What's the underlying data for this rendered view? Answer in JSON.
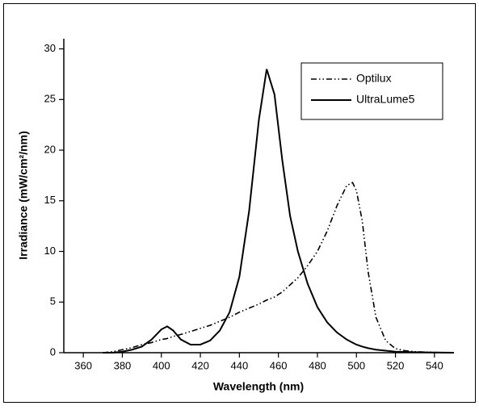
{
  "chart_data": {
    "type": "line",
    "x_label": "Wavelength (nm)",
    "y_label": "Irradiance (mW/cm²/nm)",
    "x": [
      370,
      375,
      380,
      385,
      390,
      395,
      400,
      403,
      406,
      410,
      415,
      420,
      425,
      430,
      435,
      440,
      445,
      450,
      454,
      458,
      462,
      466,
      470,
      475,
      480,
      485,
      490,
      495,
      498,
      500,
      503,
      506,
      510,
      515,
      520,
      525,
      530,
      540,
      550
    ],
    "series": [
      {
        "name": "Optilux",
        "color": "#000000",
        "style": "dashdot",
        "values": [
          0,
          0.1,
          0.3,
          0.5,
          0.8,
          1.0,
          1.3,
          1.4,
          1.6,
          1.8,
          2.1,
          2.4,
          2.7,
          3.1,
          3.5,
          4.0,
          4.4,
          4.8,
          5.2,
          5.5,
          6.0,
          6.7,
          7.4,
          8.6,
          10,
          12,
          14.5,
          16.5,
          16.8,
          16,
          13,
          8,
          3.5,
          1.2,
          0.4,
          0.2,
          0.1,
          0.03,
          0
        ]
      },
      {
        "name": "UltraLume5",
        "color": "#000000",
        "style": "solid",
        "values": [
          0,
          0,
          0.1,
          0.3,
          0.6,
          1.3,
          2.3,
          2.6,
          2.2,
          1.3,
          0.8,
          0.8,
          1.2,
          2.2,
          4.0,
          7.5,
          14,
          23,
          28,
          25.5,
          19,
          13.5,
          10,
          6.8,
          4.5,
          3,
          2,
          1.3,
          1.0,
          0.8,
          0.6,
          0.45,
          0.3,
          0.2,
          0.1,
          0.08,
          0.05,
          0.02,
          0
        ]
      }
    ],
    "xlim": [
      350,
      550
    ],
    "xticks": [
      360,
      380,
      400,
      420,
      440,
      460,
      480,
      500,
      520,
      540
    ],
    "ylim": [
      0,
      31
    ],
    "yticks": [
      0,
      5,
      10,
      15,
      20,
      25,
      30
    ],
    "grid": false,
    "legend": "upper-right"
  }
}
